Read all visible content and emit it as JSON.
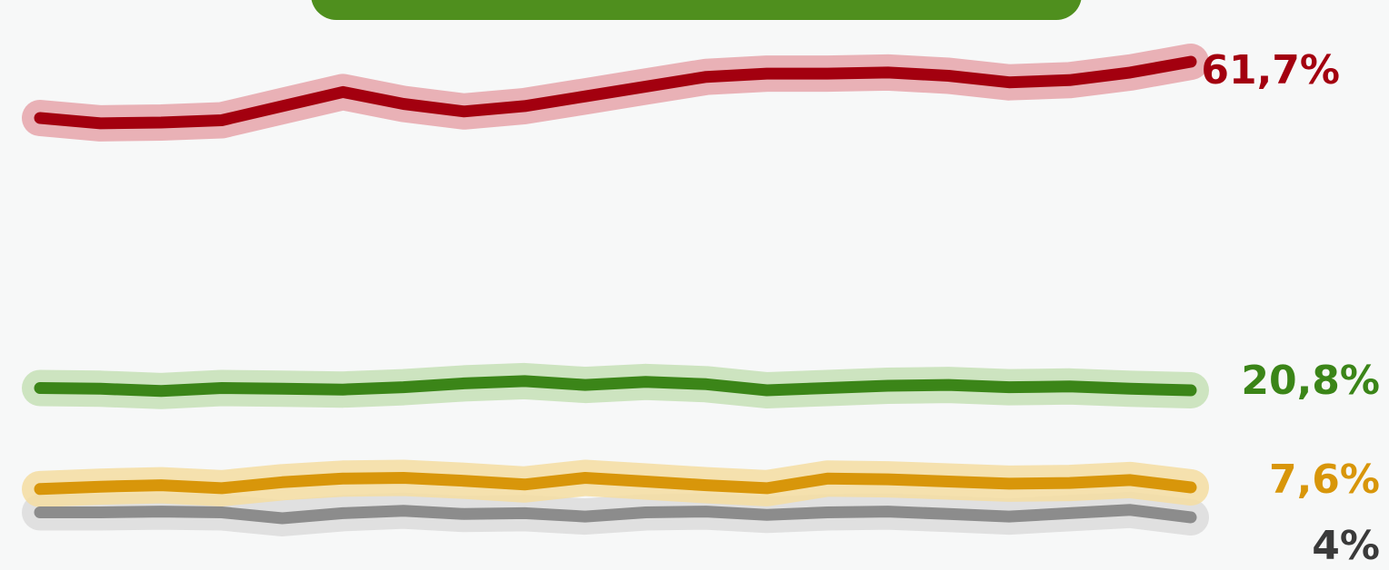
{
  "chart_data": {
    "type": "line",
    "title": "",
    "xlabel": "",
    "ylabel": "",
    "ylim": [
      0,
      68
    ],
    "grid": false,
    "legend": "none",
    "x": [
      1,
      2,
      3,
      4,
      5,
      6,
      7,
      8,
      9,
      10,
      11,
      12,
      13,
      14,
      15,
      16,
      17,
      18,
      19,
      20
    ],
    "series": [
      {
        "key": "red",
        "color": "#a3000f",
        "halo": "#e6a4aa",
        "end_label": "61,7%",
        "values": [
          56.5,
          55.8,
          55.9,
          56.2,
          57.6,
          58.9,
          57.8,
          57.1,
          57.6,
          58.5,
          59.4,
          60.3,
          60.6,
          60.6,
          60.7,
          60.4,
          59.8,
          60.0,
          60.7,
          61.7
        ]
      },
      {
        "key": "green",
        "color": "#3b8518",
        "halo": "#c5e0b6",
        "end_label": "20,8%",
        "values": [
          21.1,
          21.0,
          20.7,
          21.1,
          21.0,
          20.9,
          21.2,
          21.7,
          22.0,
          21.5,
          21.9,
          21.6,
          20.8,
          21.1,
          21.4,
          21.5,
          21.2,
          21.3,
          21.0,
          20.8
        ]
      },
      {
        "key": "yellow",
        "color": "#d8960a",
        "halo": "#f4dda1",
        "end_label": "7,6%",
        "values": [
          7.4,
          7.7,
          7.9,
          7.5,
          8.3,
          8.8,
          8.9,
          8.5,
          8.0,
          8.9,
          8.4,
          7.9,
          7.5,
          8.8,
          8.7,
          8.4,
          8.1,
          8.2,
          8.6,
          7.6
        ]
      },
      {
        "key": "gray",
        "color": "#8c8c8c",
        "halo": "#dcdcdc",
        "end_label": "4%",
        "values": [
          4.6,
          4.6,
          4.7,
          4.6,
          3.9,
          4.5,
          4.8,
          4.4,
          4.5,
          4.1,
          4.6,
          4.7,
          4.3,
          4.6,
          4.7,
          4.4,
          4.1,
          4.5,
          4.9,
          4.0
        ]
      }
    ]
  }
}
